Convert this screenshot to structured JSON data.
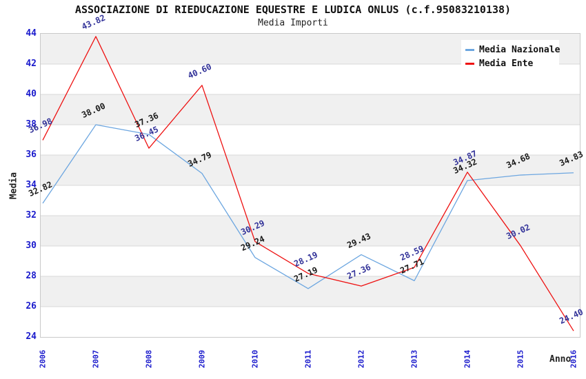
{
  "header": {
    "title": "ASSOCIAZIONE DI RIEDUCAZIONE EQUESTRE E LUDICA ONLUS (c.f.95083210138)",
    "subtitle": "Media Importi"
  },
  "chart_data": {
    "type": "line",
    "x": [
      2006,
      2007,
      2008,
      2009,
      2010,
      2011,
      2012,
      2013,
      2014,
      2015,
      2016
    ],
    "series": [
      {
        "name": "Media Nazionale",
        "color": "#6CA6E0",
        "label_color": "#1a1a1a",
        "values": [
          32.82,
          38.0,
          37.36,
          34.79,
          29.24,
          27.19,
          29.43,
          27.71,
          34.32,
          34.68,
          34.83
        ]
      },
      {
        "name": "Media Ente",
        "color": "#EE1111",
        "label_color": "#333399",
        "values": [
          36.98,
          43.82,
          36.45,
          40.6,
          30.29,
          28.19,
          27.36,
          28.59,
          34.87,
          30.02,
          24.4
        ]
      }
    ],
    "xlabel": "Anno",
    "ylabel": "Media",
    "ylim": [
      24,
      44
    ],
    "ytick_step": 2,
    "grid": "horizontal-bands-alternating",
    "band_color": "#f0f0f0",
    "grid_color": "#d9d9d9",
    "axis_text_color": "#1a1acc",
    "legend_position": "top-right"
  }
}
